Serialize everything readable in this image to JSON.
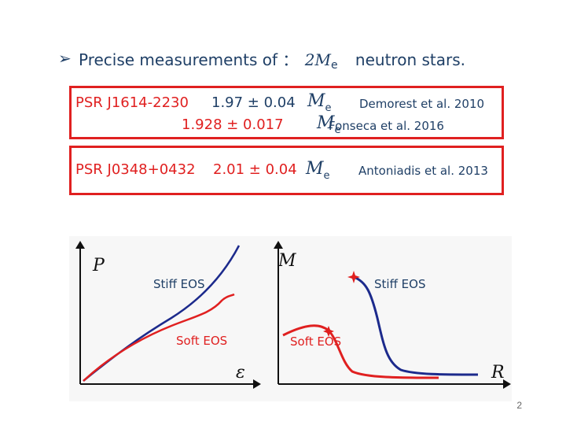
{
  "heading": {
    "arrow_glyph": "➢",
    "prefix": "Precise measurements of ：",
    "mass_symbol": "2M",
    "mass_sub": "e",
    "suffix": "neutron stars."
  },
  "pulsars": [
    {
      "name": "PSR J1614-2230",
      "measurements": [
        {
          "value": "1.97 ± 0.04",
          "unit": "M",
          "unit_sub": "e",
          "reference": "Demorest et al. 2010"
        },
        {
          "value": "1.928 ± 0.017",
          "unit": "M",
          "unit_sub": "e",
          "reference": "Fonseca et al. 2016"
        }
      ]
    },
    {
      "name": "PSR J0348+0432",
      "measurements": [
        {
          "value": "2.01 ± 0.04",
          "unit": "M",
          "unit_sub": "e",
          "reference": "Antoniadis et al. 2013"
        }
      ]
    }
  ],
  "plots": {
    "left": {
      "y_axis_label": "P",
      "x_axis_label": "ε",
      "stiff_label": "Stiff EOS",
      "soft_label": "Soft EOS"
    },
    "right": {
      "y_axis_label": "M",
      "x_axis_label": "R",
      "stiff_label": "Stiff EOS",
      "soft_label": "Soft EOS"
    },
    "colors": {
      "stiff": "#1c2a8c",
      "soft": "#e02020",
      "axis": "#111111"
    }
  },
  "page_number": "2"
}
